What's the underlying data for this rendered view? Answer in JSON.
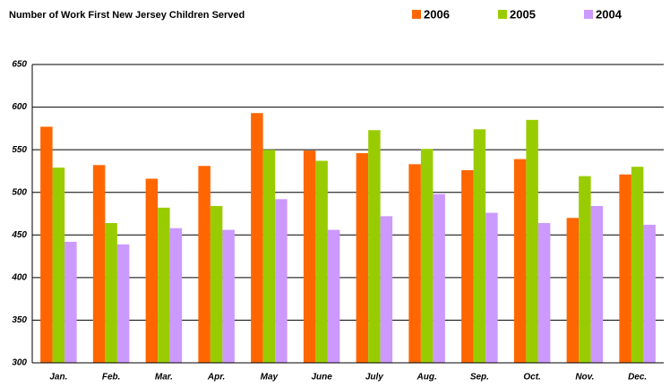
{
  "chart_data": {
    "type": "bar",
    "title": "Number of Work First New Jersey Children Served",
    "categories": [
      "Jan.",
      "Feb.",
      "Mar.",
      "Apr.",
      "May",
      "June",
      "July",
      "Aug.",
      "Sep.",
      "Oct.",
      "Nov.",
      "Dec."
    ],
    "series": [
      {
        "name": "2006",
        "color": "#ff6600",
        "values": [
          577,
          532,
          516,
          531,
          593,
          549,
          546,
          533,
          526,
          539,
          470,
          521
        ]
      },
      {
        "name": "2005",
        "color": "#99cc00",
        "values": [
          529,
          464,
          482,
          484,
          550,
          537,
          573,
          551,
          574,
          585,
          519,
          530
        ]
      },
      {
        "name": "2004",
        "color": "#cc99ff",
        "values": [
          442,
          439,
          458,
          456,
          492,
          456,
          472,
          498,
          476,
          464,
          484,
          462
        ]
      }
    ],
    "ylim": [
      300,
      650
    ],
    "yticks": [
      300,
      350,
      400,
      450,
      500,
      550,
      600,
      650
    ],
    "grid": true
  }
}
